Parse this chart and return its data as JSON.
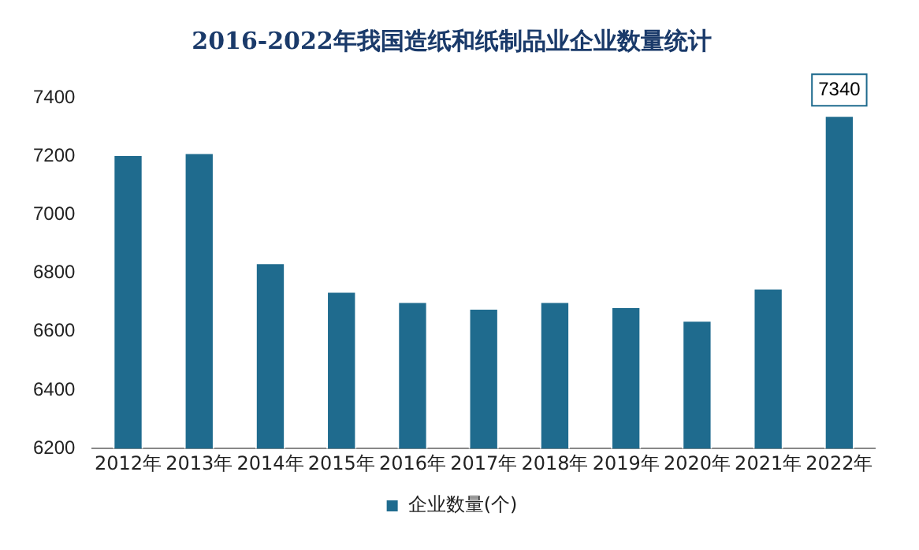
{
  "chart_data": {
    "type": "bar",
    "title": "2016-2022年我国造纸和纸制品业企业数量统计",
    "categories": [
      "2012年",
      "2013年",
      "2014年",
      "2015年",
      "2016年",
      "2017年",
      "2018年",
      "2019年",
      "2020年",
      "2021年",
      "2022年"
    ],
    "series": [
      {
        "name": "企业数量(个)",
        "color": "#1f6b8e",
        "values": [
          7206,
          7213,
          6836,
          6738,
          6703,
          6680,
          6703,
          6686,
          6639,
          6749,
          7340
        ],
        "value_labels": [
          null,
          null,
          null,
          null,
          null,
          null,
          null,
          null,
          null,
          null,
          "7340"
        ]
      }
    ],
    "ylim": [
      6200,
      7400
    ],
    "yticks": [
      6200,
      6400,
      6600,
      6800,
      7000,
      7200,
      7400
    ],
    "grid": false,
    "legend": "bottom"
  }
}
